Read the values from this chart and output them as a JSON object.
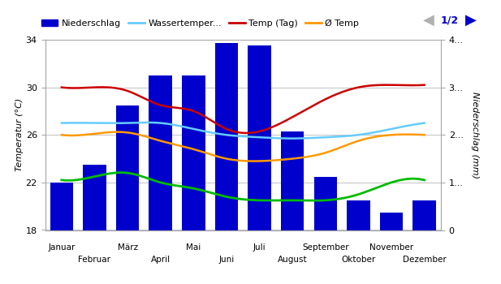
{
  "bar_values": [
    22.0,
    23.5,
    28.5,
    31.0,
    31.0,
    33.7,
    33.5,
    26.3,
    22.5,
    20.5,
    19.5,
    20.5
  ],
  "temp_tag": [
    30.0,
    30.0,
    29.7,
    28.5,
    28.0,
    26.5,
    26.3,
    27.5,
    29.0,
    30.0,
    30.2,
    30.2
  ],
  "temp_avg": [
    26.0,
    26.1,
    26.2,
    25.5,
    24.8,
    24.0,
    23.8,
    24.0,
    24.5,
    25.5,
    26.0,
    26.0
  ],
  "wassertemp": [
    27.0,
    27.0,
    27.0,
    27.0,
    26.5,
    26.0,
    25.8,
    25.7,
    25.8,
    26.0,
    26.5,
    27.0
  ],
  "min_temp": [
    22.2,
    22.5,
    22.8,
    22.0,
    21.5,
    20.8,
    20.5,
    20.5,
    20.5,
    21.0,
    22.0,
    22.2
  ],
  "ylabel_left": "Temperatur (°C)",
  "ylabel_right": "Niederschlag (mm)",
  "ylim_left": [
    18,
    34
  ],
  "ylim_right": [
    0,
    4
  ],
  "yticks_left": [
    18,
    22,
    26,
    30,
    34
  ],
  "yticks_right_labels": [
    "0",
    "1...",
    "2...",
    "3...",
    "4..."
  ],
  "bar_color": "#0000cc",
  "line_temp_tag_color": "#cc0000",
  "line_temp_avg_color": "#ff9900",
  "line_wassertemp_color": "#66ccff",
  "line_min_temp_color": "#00bb00",
  "background_color": "#ffffff",
  "grid_color": "#aaaaaa",
  "legend_labels": [
    "Niederschlag",
    "Wassertemper...",
    "Temp (Tag)",
    "Ø Temp"
  ],
  "page_label": "1/2",
  "odd_months": [
    "Januar",
    "März",
    "Mai",
    "Juli",
    "September",
    "November"
  ],
  "even_months": [
    "Februar",
    "April",
    "Juni",
    "August",
    "Oktober",
    "Dezember"
  ]
}
